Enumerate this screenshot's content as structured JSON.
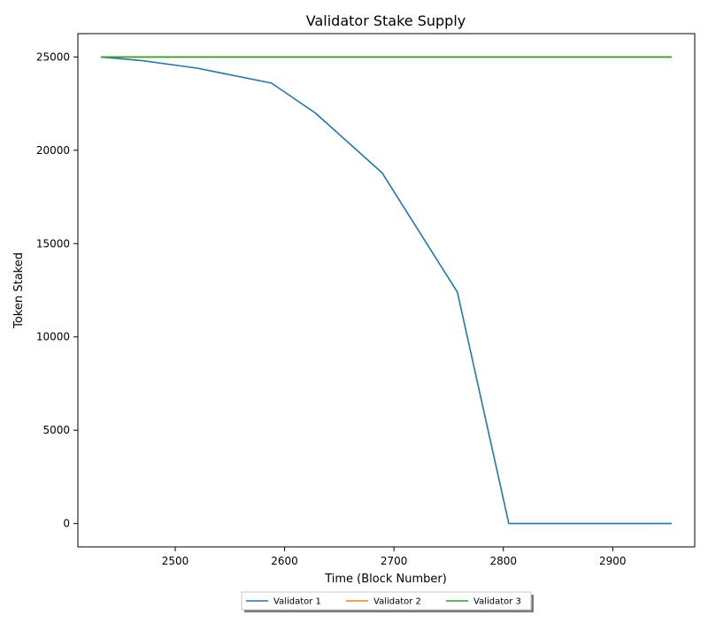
{
  "chart_data": {
    "type": "line",
    "title": "Validator Stake Supply",
    "xlabel": "Time (Block Number)",
    "ylabel": "Token Staked",
    "xlim": [
      2411,
      2975
    ],
    "ylim": [
      -1250,
      26250
    ],
    "xticks": [
      2500,
      2600,
      2700,
      2800,
      2900
    ],
    "yticks": [
      0,
      5000,
      10000,
      15000,
      20000,
      25000
    ],
    "grid": false,
    "legend_position": "bottom-center",
    "series": [
      {
        "name": "Validator 1",
        "color": "#1f77b4",
        "x": [
          2432,
          2470,
          2520,
          2588,
          2628,
          2689,
          2758,
          2805,
          2850,
          2900,
          2954
        ],
        "y": [
          25000,
          24800,
          24400,
          23600,
          22000,
          18800,
          12400,
          0,
          0,
          0,
          0
        ]
      },
      {
        "name": "Validator 2",
        "color": "#ff7f0e",
        "x": [
          2432,
          2954
        ],
        "y": [
          25000,
          25000
        ]
      },
      {
        "name": "Validator 3",
        "color": "#2ca02c",
        "x": [
          2432,
          2954
        ],
        "y": [
          25000,
          25000
        ]
      }
    ]
  }
}
